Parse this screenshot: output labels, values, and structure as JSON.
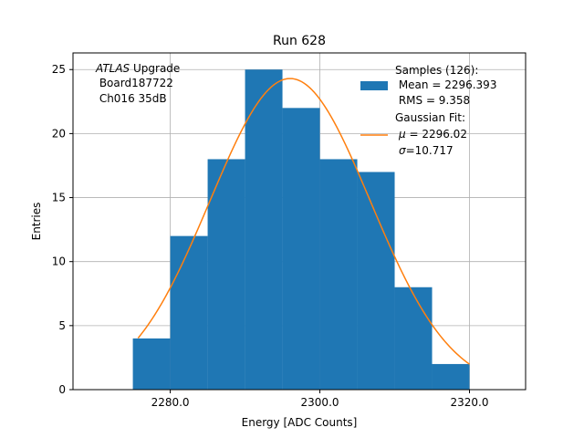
{
  "chart_data": {
    "type": "bar",
    "title": "Run 628",
    "xlabel": "Energy [ADC Counts]",
    "ylabel": "Entries",
    "xlim": [
      2267,
      2327.5
    ],
    "ylim": [
      0,
      26.3
    ],
    "xticks": [
      2280,
      2300,
      2320
    ],
    "xtick_labels": [
      "2280.0",
      "2300.0",
      "2320.0"
    ],
    "yticks": [
      0,
      5,
      10,
      15,
      20,
      25
    ],
    "ytick_labels": [
      "0",
      "5",
      "10",
      "15",
      "20",
      "25"
    ],
    "grid": true,
    "bins": [
      {
        "x0": 2275,
        "x1": 2280,
        "count": 4
      },
      {
        "x0": 2280,
        "x1": 2285,
        "count": 12
      },
      {
        "x0": 2285,
        "x1": 2290,
        "count": 18
      },
      {
        "x0": 2290,
        "x1": 2295,
        "count": 25
      },
      {
        "x0": 2295,
        "x1": 2300,
        "count": 22
      },
      {
        "x0": 2300,
        "x1": 2305,
        "count": 18
      },
      {
        "x0": 2305,
        "x1": 2310,
        "count": 17
      },
      {
        "x0": 2310,
        "x1": 2315,
        "count": 8
      },
      {
        "x0": 2315,
        "x1": 2320,
        "count": 2
      }
    ],
    "fit": {
      "mu": 2296.02,
      "sigma": 10.717,
      "amplitude": 24.3,
      "x_range": [
        2275.7,
        2320
      ]
    },
    "annotation": {
      "italic": "ATLAS",
      "rest": " Upgrade",
      "line2": " Board187722",
      "line3": " Ch016 35dB"
    },
    "legend": {
      "placement": "top-right",
      "samples_line1": "Samples (126):",
      "samples_line2": " Mean = 2296.393",
      "samples_line3": " RMS = 9.358",
      "fit_line1": "Gaussian Fit:",
      "fit_line2_sym": "μ",
      "fit_line2_rest": " = 2296.02",
      "fit_line3_sym": "σ",
      "fit_line3_rest": "=10.717"
    },
    "colors": {
      "bar": "#1f77b4",
      "fit": "#ff7f0e",
      "grid": "#b0b0b0"
    }
  }
}
